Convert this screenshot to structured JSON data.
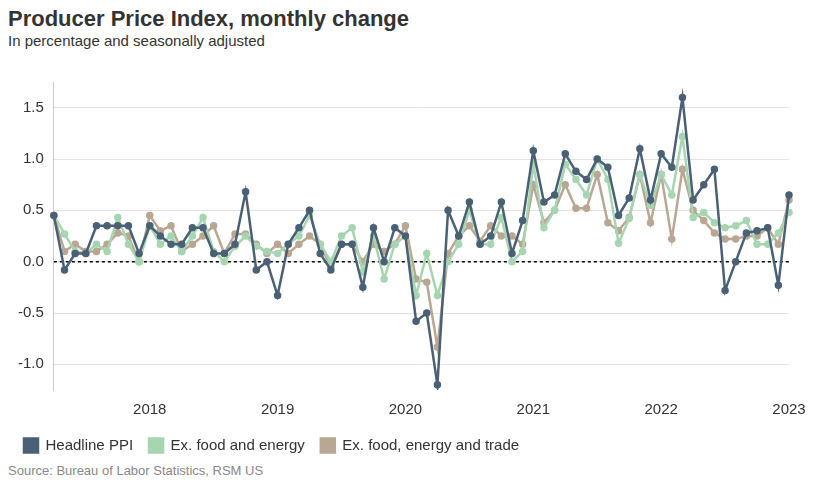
{
  "chart_data": {
    "type": "line",
    "title": "Producer Price Index, monthly change",
    "subtitle": "In percentage and seasonally adjusted",
    "source": "Source: Bureau of Labor Statistics, RSM US",
    "categories": [
      null,
      null,
      null,
      null,
      null,
      null,
      null,
      null,
      null,
      "2018",
      null,
      null,
      null,
      null,
      null,
      null,
      null,
      null,
      null,
      null,
      null,
      "2019",
      null,
      null,
      null,
      null,
      null,
      null,
      null,
      null,
      null,
      null,
      null,
      "2020",
      null,
      null,
      null,
      null,
      null,
      null,
      null,
      null,
      null,
      null,
      null,
      "2021",
      null,
      null,
      null,
      null,
      null,
      null,
      null,
      null,
      null,
      null,
      null,
      "2022",
      null,
      null,
      null,
      null,
      null,
      null,
      null,
      null,
      null,
      null,
      null,
      "2023"
    ],
    "series": [
      {
        "name": "Headline PPI",
        "color": "#4a6075",
        "marker": "circle",
        "line_style": "solid",
        "values": [
          0.45,
          -0.08,
          0.08,
          0.08,
          0.35,
          0.35,
          0.35,
          0.35,
          0.08,
          0.35,
          0.25,
          0.17,
          0.17,
          0.33,
          0.33,
          0.08,
          0.08,
          0.17,
          0.68,
          -0.08,
          0.0,
          -0.33,
          0.17,
          0.33,
          0.5,
          0.08,
          -0.08,
          0.17,
          0.17,
          -0.25,
          0.33,
          0.0,
          0.33,
          0.25,
          -0.58,
          -0.5,
          -1.2,
          0.5,
          0.25,
          0.58,
          0.17,
          0.25,
          0.58,
          0.08,
          0.4,
          1.08,
          0.58,
          0.65,
          1.05,
          0.88,
          0.8,
          1.0,
          0.92,
          0.45,
          0.62,
          1.1,
          0.6,
          1.05,
          0.92,
          1.6,
          0.6,
          0.75,
          0.9,
          -0.28,
          0.0,
          0.28,
          0.3,
          0.33,
          -0.23,
          0.65
        ]
      },
      {
        "name": "Ex. food and energy",
        "color": "#a6d6b1",
        "marker": "circle",
        "line_style": "solid",
        "values": [
          0.45,
          0.27,
          0.1,
          0.08,
          0.17,
          0.1,
          0.43,
          0.17,
          0.0,
          0.35,
          0.17,
          0.25,
          0.1,
          0.25,
          0.43,
          0.1,
          0.0,
          0.15,
          0.25,
          0.15,
          0.1,
          0.08,
          0.17,
          0.25,
          0.45,
          0.17,
          0.0,
          0.25,
          0.33,
          -0.1,
          0.25,
          -0.17,
          0.17,
          0.25,
          -0.33,
          0.08,
          -0.33,
          0.0,
          0.17,
          0.5,
          0.17,
          0.17,
          0.43,
          0.0,
          0.1,
          0.95,
          0.33,
          0.5,
          0.95,
          0.8,
          0.65,
          1.0,
          0.8,
          0.18,
          0.42,
          0.85,
          0.55,
          0.85,
          0.65,
          1.22,
          0.43,
          0.48,
          0.38,
          0.33,
          0.35,
          0.4,
          0.17,
          0.17,
          0.28,
          0.48
        ]
      },
      {
        "name": "Ex. food, energy and trade",
        "color": "#b9a793",
        "marker": "circle",
        "line_style": "solid",
        "values": [
          0.45,
          0.1,
          0.17,
          0.1,
          0.1,
          0.17,
          0.28,
          0.25,
          0.0,
          0.45,
          0.3,
          0.35,
          0.1,
          0.17,
          0.25,
          0.35,
          0.08,
          0.27,
          0.27,
          0.17,
          0.08,
          0.17,
          0.08,
          0.17,
          0.25,
          0.17,
          -0.05,
          0.17,
          0.17,
          0.0,
          0.17,
          0.1,
          0.17,
          0.35,
          -0.17,
          -0.2,
          -0.83,
          0.08,
          0.25,
          0.35,
          0.2,
          0.35,
          0.25,
          0.25,
          0.17,
          0.75,
          0.38,
          0.5,
          0.75,
          0.52,
          0.52,
          0.85,
          0.38,
          0.3,
          0.43,
          0.85,
          0.38,
          0.85,
          0.22,
          0.9,
          0.5,
          0.4,
          0.28,
          0.22,
          0.22,
          0.25,
          0.25,
          0.33,
          0.17,
          0.6
        ]
      }
    ],
    "ylim": [
      -1.25,
      1.75
    ],
    "yticks": [
      {
        "value": -1,
        "label": "-1.0"
      },
      -0.5,
      {
        "value": 0,
        "label": "0.0"
      },
      0.5,
      {
        "value": 1,
        "label": "1.0"
      },
      1.5
    ],
    "grid": true,
    "legend": "bottom"
  }
}
